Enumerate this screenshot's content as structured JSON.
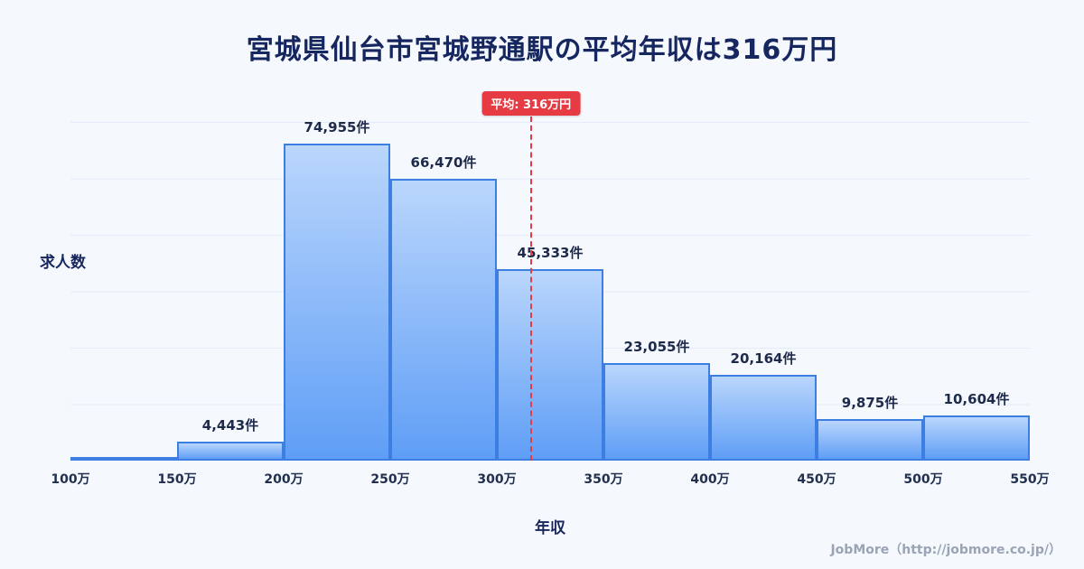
{
  "page": {
    "title": "宮城県仙台市宮城野通駅の平均年収は316万円",
    "footer": "JobMore（http://jobmore.co.jp/）",
    "background": "#f5f8fd"
  },
  "chart_data": {
    "type": "bar",
    "title": "宮城県仙台市宮城野通駅の平均年収は316万円",
    "xlabel": "年収",
    "ylabel": "求人数",
    "x_ticks": [
      "100万",
      "150万",
      "200万",
      "250万",
      "300万",
      "350万",
      "400万",
      "450万",
      "500万",
      "550万"
    ],
    "x_range": [
      100,
      550
    ],
    "values": [
      500,
      4443,
      74955,
      66470,
      45333,
      23055,
      20164,
      9875,
      10604
    ],
    "labels": [
      "",
      "4,443件",
      "74,955件",
      "66,470件",
      "45,333件",
      "23,055件",
      "20,164件",
      "9,875件",
      "10,604件"
    ],
    "ylim": [
      0,
      80000
    ],
    "grid": true,
    "average": {
      "value": 316,
      "label": "平均: 316万円"
    },
    "colors": {
      "bar_fill_top": "#bad6fc",
      "bar_fill_bottom": "#5f9ef6",
      "bar_border": "#3d7ee2",
      "average_line": "#e63b42",
      "title_text": "#16265e"
    }
  }
}
